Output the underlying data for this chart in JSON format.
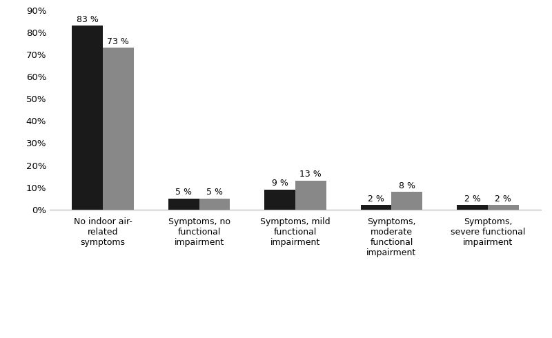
{
  "categories": [
    "No indoor air-\nrelated\nsymptoms",
    "Symptoms, no\nfunctional\nimpairment",
    "Symptoms, mild\nfunctional\nimpairment",
    "Symptoms,\nmoderate\nfunctional\nimpairment",
    "Symptoms,\nsevere functional\nimpairment"
  ],
  "men_values": [
    83,
    5,
    9,
    2,
    2
  ],
  "women_values": [
    73,
    5,
    13,
    8,
    2
  ],
  "men_color": "#1a1a1a",
  "women_color": "#888888",
  "ylim": [
    0,
    90
  ],
  "yticks": [
    0,
    10,
    20,
    30,
    40,
    50,
    60,
    70,
    80,
    90
  ],
  "bar_width": 0.32,
  "background_color": "#ffffff",
  "label_fontsize": 9.0,
  "tick_fontsize": 9.5,
  "legend_fontsize": 10,
  "value_fontsize": 9
}
